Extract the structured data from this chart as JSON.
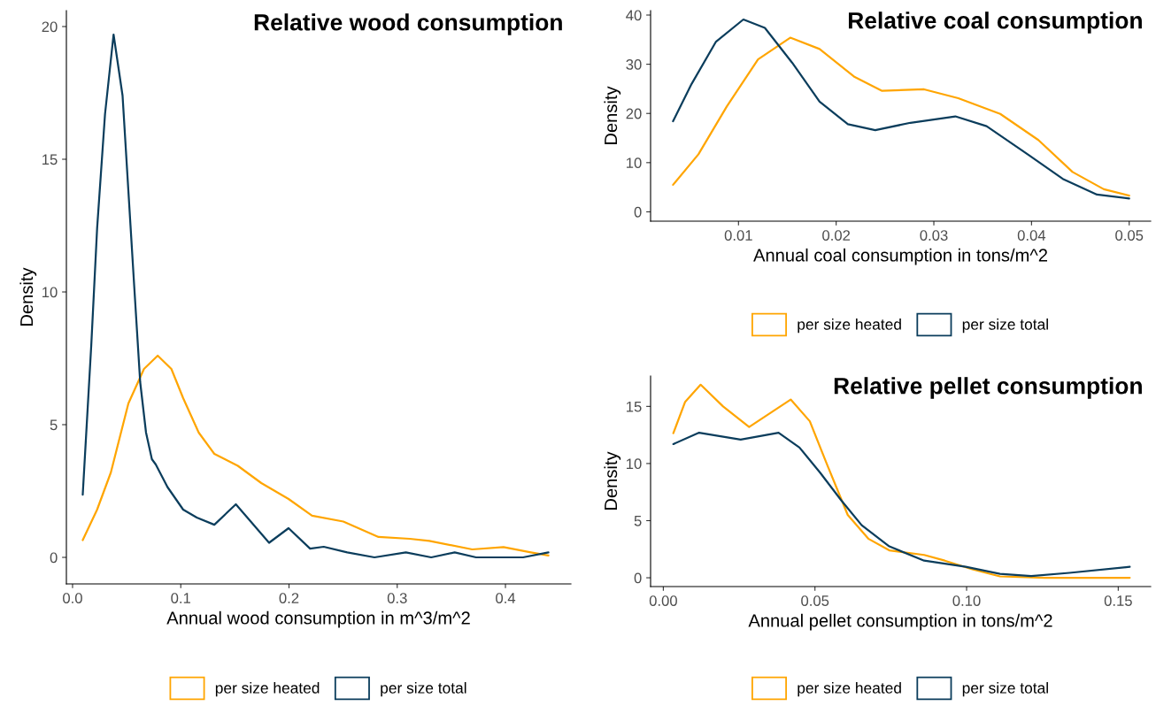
{
  "chart_data": [
    {
      "type": "line",
      "title": "Relative wood consumption",
      "xlabel": "Annual wood consumption in m^3/m^2",
      "ylabel": "Density",
      "legend": "bottom",
      "grid": false,
      "xlim": [
        -0.0057,
        0.4605
      ],
      "ylim": [
        -1.0,
        20.6
      ],
      "xticks": [
        {
          "value": 0,
          "label": "0.0"
        },
        {
          "value": 0.1,
          "label": "0.1"
        },
        {
          "value": 0.2,
          "label": "0.2"
        },
        {
          "value": 0.3,
          "label": "0.3"
        },
        {
          "value": 0.4,
          "label": "0.4"
        }
      ],
      "yticks": [
        0,
        5,
        10,
        15,
        20
      ],
      "series": [
        {
          "name": "per size heated",
          "color": "#ffa500",
          "x": [
            0.0094,
            0.0227,
            0.0354,
            0.0516,
            0.066,
            0.0787,
            0.0913,
            0.1022,
            0.1166,
            0.131,
            0.1527,
            0.1744,
            0.1996,
            0.2213,
            0.2502,
            0.2827,
            0.3116,
            0.3296,
            0.3693,
            0.3982,
            0.4235,
            0.4397
          ],
          "values": [
            0.65,
            1.8,
            3.2,
            5.8,
            7.1,
            7.6,
            7.1,
            6.0,
            4.7,
            3.9,
            3.45,
            2.8,
            2.2,
            1.57,
            1.35,
            0.77,
            0.7,
            0.62,
            0.3,
            0.39,
            0.19,
            0.07
          ]
        },
        {
          "name": "per size total",
          "color": "#0b3d5c",
          "x": [
            0.0094,
            0.0173,
            0.0227,
            0.03,
            0.0379,
            0.0462,
            0.0516,
            0.057,
            0.0625,
            0.0679,
            0.0733,
            0.0769,
            0.0877,
            0.1022,
            0.1148,
            0.131,
            0.1509,
            0.1816,
            0.1996,
            0.2195,
            0.2321,
            0.2538,
            0.279,
            0.308,
            0.3314,
            0.3531,
            0.3729,
            0.4162,
            0.4397
          ],
          "values": [
            2.36,
            8.0,
            12.4,
            16.7,
            19.7,
            17.4,
            13.8,
            10.2,
            6.6,
            4.7,
            3.7,
            3.5,
            2.65,
            1.8,
            1.5,
            1.23,
            2.0,
            0.55,
            1.1,
            0.33,
            0.4,
            0.19,
            0,
            0.19,
            0,
            0.19,
            0,
            0,
            0.19
          ]
        }
      ]
    },
    {
      "type": "line",
      "title": "Relative coal consumption",
      "xlabel": "Annual coal consumption in tons/m^2",
      "ylabel": "Density",
      "legend": "bottom",
      "grid": false,
      "xlim": [
        0.001,
        0.0522
      ],
      "ylim": [
        -1.9,
        40.9
      ],
      "xticks": [
        0.01,
        0.02,
        0.03,
        0.04,
        0.05
      ],
      "yticks": [
        0,
        10,
        20,
        30,
        40
      ],
      "series": [
        {
          "name": "per size heated",
          "color": "#ffa500",
          "x": [
            0.0033,
            0.0059,
            0.0088,
            0.012,
            0.0153,
            0.0183,
            0.0219,
            0.0247,
            0.029,
            0.0325,
            0.0368,
            0.0407,
            0.0442,
            0.0474,
            0.05
          ],
          "values": [
            5.5,
            11.7,
            21.4,
            31,
            35.4,
            33.1,
            27.4,
            24.6,
            24.9,
            23.1,
            19.9,
            14.6,
            8.1,
            4.6,
            3.3
          ]
        },
        {
          "name": "per size total",
          "color": "#0b3d5c",
          "x": [
            0.0033,
            0.0052,
            0.0077,
            0.0105,
            0.0127,
            0.0155,
            0.0183,
            0.0212,
            0.024,
            0.0276,
            0.0322,
            0.0354,
            0.0396,
            0.0432,
            0.0467,
            0.05
          ],
          "values": [
            18.4,
            26,
            34.6,
            39.1,
            37.4,
            30.3,
            22.4,
            17.8,
            16.6,
            18.1,
            19.4,
            17.4,
            11.7,
            6.7,
            3.5,
            2.7
          ]
        }
      ]
    },
    {
      "type": "line",
      "title": "Relative pellet consumption",
      "xlabel": "Annual pellet consumption in tons/m^2",
      "ylabel": "Density",
      "legend": "bottom",
      "grid": false,
      "xlim": [
        -0.0042,
        0.1607
      ],
      "ylim": [
        -0.77,
        17.66
      ],
      "xticks": [
        {
          "value": 0,
          "label": "0.00"
        },
        {
          "value": 0.05,
          "label": "0.05"
        },
        {
          "value": 0.1,
          "label": "0.10"
        },
        {
          "value": 0.15,
          "label": "0.15"
        }
      ],
      "yticks": [
        0,
        5,
        10,
        15
      ],
      "series": [
        {
          "name": "per size heated",
          "color": "#ffa500",
          "x": [
            0.0033,
            0.0072,
            0.0123,
            0.0197,
            0.0283,
            0.0357,
            0.042,
            0.0483,
            0.054,
            0.0608,
            0.0677,
            0.0745,
            0.086,
            0.0928,
            0.1019,
            0.111,
            0.1259,
            0.1538
          ],
          "values": [
            12.65,
            15.4,
            16.9,
            15,
            13.2,
            14.5,
            15.6,
            13.7,
            9.9,
            5.5,
            3.4,
            2.4,
            2.0,
            1.5,
            0.74,
            0.12,
            0,
            0
          ]
        },
        {
          "name": "per size total",
          "color": "#0b3d5c",
          "x": [
            0.0033,
            0.0118,
            0.0255,
            0.038,
            0.0449,
            0.0517,
            0.0586,
            0.0654,
            0.0745,
            0.086,
            0.0997,
            0.111,
            0.1213,
            0.1339,
            0.1538
          ],
          "values": [
            11.7,
            12.7,
            12.1,
            12.7,
            11.4,
            9.2,
            6.8,
            4.6,
            2.75,
            1.5,
            0.96,
            0.34,
            0.15,
            0.43,
            0.96
          ]
        }
      ]
    }
  ]
}
